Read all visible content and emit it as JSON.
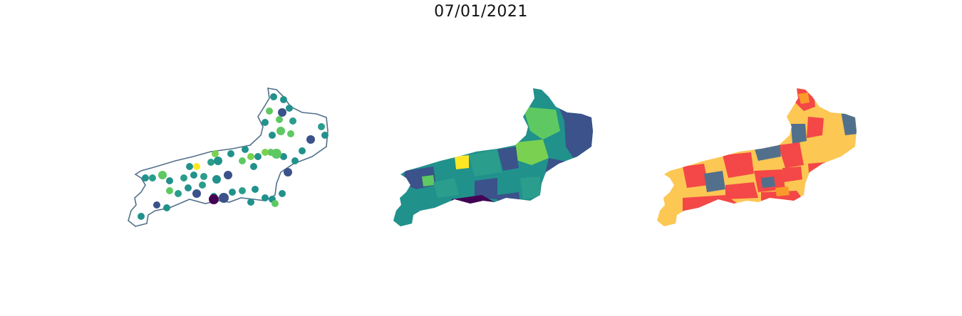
{
  "title": "07/01/2021",
  "colors": {
    "outline": "#52708c",
    "viridis": [
      "#440154",
      "#3b528b",
      "#21918c",
      "#2a9d8c",
      "#5ec962",
      "#7ad151",
      "#fde725"
    ],
    "categorical": [
      "#fcc753",
      "#f44747",
      "#52708c",
      "#fb9a2a"
    ]
  },
  "panels": [
    {
      "name": "municipality-points-map"
    },
    {
      "name": "municipality-choropleth-map"
    },
    {
      "name": "municipality-category-map"
    }
  ]
}
